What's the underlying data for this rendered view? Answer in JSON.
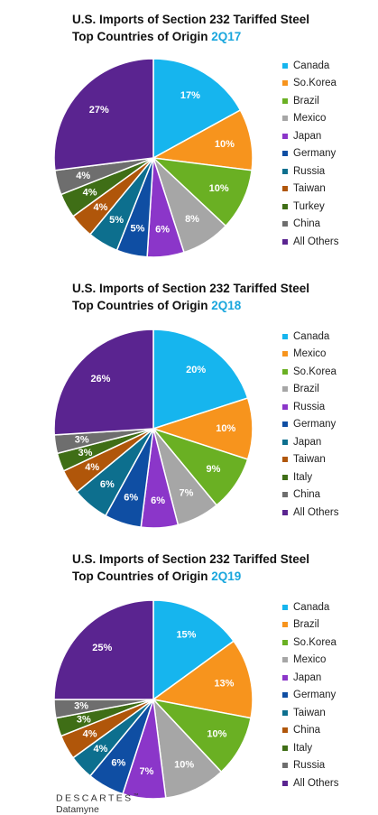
{
  "chart_data": [
    {
      "type": "pie",
      "title": "U.S. Imports of Section 232 Tariffed Steel",
      "subtitle": "Top Countries of Origin",
      "period": "2Q17",
      "legend_position": "right",
      "slices": [
        {
          "label": "Canada",
          "value": 17,
          "color": "#16b5ee"
        },
        {
          "label": "So.Korea",
          "value": 10,
          "color": "#f7941d"
        },
        {
          "label": "Brazil",
          "value": 10,
          "color": "#6ab023"
        },
        {
          "label": "Mexico",
          "value": 8,
          "color": "#a6a6a6"
        },
        {
          "label": "Japan",
          "value": 6,
          "color": "#8b36c9"
        },
        {
          "label": "Germany",
          "value": 5,
          "color": "#0f4ea3"
        },
        {
          "label": "Russia",
          "value": 5,
          "color": "#0d6f8e"
        },
        {
          "label": "Taiwan",
          "value": 4,
          "color": "#b0560a"
        },
        {
          "label": "Turkey",
          "value": 4,
          "color": "#3f6e16"
        },
        {
          "label": "China",
          "value": 4,
          "color": "#6e6e6e"
        },
        {
          "label": "All Others",
          "value": 27,
          "color": "#5a2490"
        }
      ]
    },
    {
      "type": "pie",
      "title": "U.S. Imports of Section 232 Tariffed Steel",
      "subtitle": "Top Countries of Origin",
      "period": "2Q18",
      "legend_position": "right",
      "slices": [
        {
          "label": "Canada",
          "value": 20,
          "color": "#16b5ee"
        },
        {
          "label": "Mexico",
          "value": 10,
          "color": "#f7941d"
        },
        {
          "label": "So.Korea",
          "value": 9,
          "color": "#6ab023"
        },
        {
          "label": "Brazil",
          "value": 7,
          "color": "#a6a6a6"
        },
        {
          "label": "Russia",
          "value": 6,
          "color": "#8b36c9"
        },
        {
          "label": "Germany",
          "value": 6,
          "color": "#0f4ea3"
        },
        {
          "label": "Japan",
          "value": 6,
          "color": "#0d6f8e"
        },
        {
          "label": "Taiwan",
          "value": 4,
          "color": "#b0560a"
        },
        {
          "label": "Italy",
          "value": 3,
          "color": "#3f6e16"
        },
        {
          "label": "China",
          "value": 3,
          "color": "#6e6e6e"
        },
        {
          "label": "All Others",
          "value": 26,
          "color": "#5a2490"
        }
      ]
    },
    {
      "type": "pie",
      "title": "U.S. Imports of Section 232 Tariffed Steel",
      "subtitle": "Top Countries of Origin",
      "period": "2Q19",
      "legend_position": "right",
      "slices": [
        {
          "label": "Canada",
          "value": 15,
          "color": "#16b5ee"
        },
        {
          "label": "Brazil",
          "value": 13,
          "color": "#f7941d"
        },
        {
          "label": "So.Korea",
          "value": 10,
          "color": "#6ab023"
        },
        {
          "label": "Mexico",
          "value": 10,
          "color": "#a6a6a6"
        },
        {
          "label": "Japan",
          "value": 7,
          "color": "#8b36c9"
        },
        {
          "label": "Germany",
          "value": 6,
          "color": "#0f4ea3"
        },
        {
          "label": "Taiwan",
          "value": 4,
          "color": "#0d6f8e"
        },
        {
          "label": "China",
          "value": 4,
          "color": "#b0560a"
        },
        {
          "label": "Italy",
          "value": 3,
          "color": "#3f6e16"
        },
        {
          "label": "Russia",
          "value": 3,
          "color": "#6e6e6e"
        },
        {
          "label": "All Others",
          "value": 25,
          "color": "#5a2490"
        }
      ]
    }
  ],
  "logo": {
    "brand": "DESCARTES",
    "sub": "Datamyne"
  }
}
